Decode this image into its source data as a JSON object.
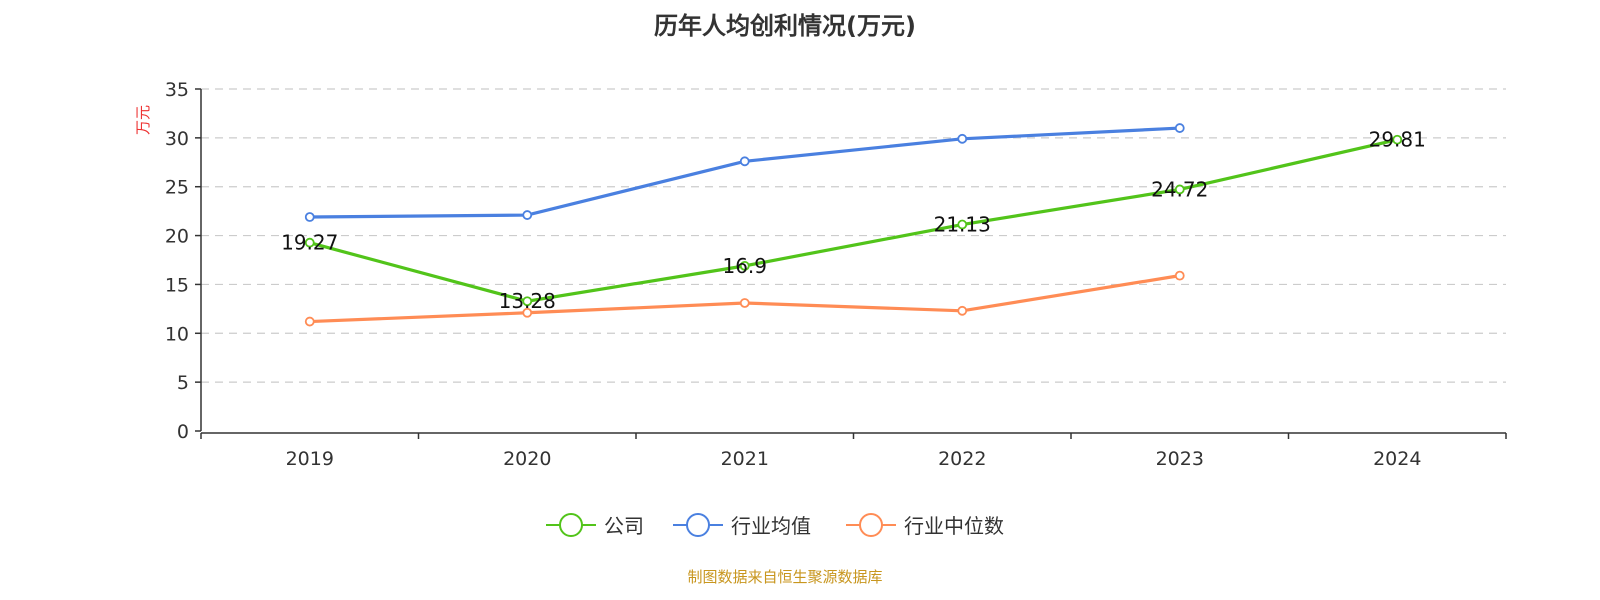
{
  "chart_data": {
    "type": "line",
    "title": "历年人均创利情况(万元)",
    "ylabel": "万元",
    "xlabel": "",
    "categories": [
      "2019",
      "2020",
      "2021",
      "2022",
      "2023",
      "2024"
    ],
    "ylim": [
      0,
      35
    ],
    "yticks": [
      0,
      5,
      10,
      15,
      20,
      25,
      30,
      35
    ],
    "grid": true,
    "legend_position": "bottom",
    "series": [
      {
        "name": "公司",
        "color": "#52c41a",
        "values": [
          19.27,
          13.28,
          16.9,
          21.13,
          24.72,
          29.81
        ],
        "labels": [
          "19.27",
          "13.28",
          "16.9",
          "21.13",
          "24.72",
          "29.81"
        ]
      },
      {
        "name": "行业均值",
        "color": "#4a80e0",
        "values": [
          21.9,
          22.1,
          27.6,
          29.9,
          31.0,
          null
        ]
      },
      {
        "name": "行业中位数",
        "color": "#ff8c55",
        "values": [
          11.2,
          12.1,
          13.1,
          12.3,
          15.9,
          null
        ]
      }
    ]
  },
  "footer": "制图数据来自恒生聚源数据库"
}
